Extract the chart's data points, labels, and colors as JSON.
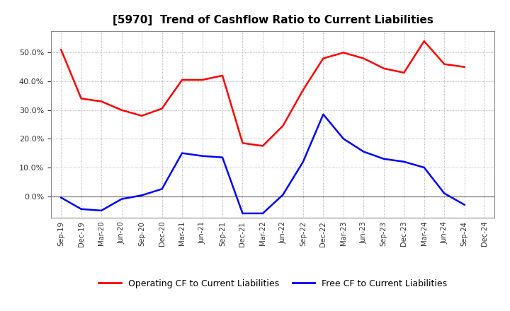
{
  "title": "[5970]  Trend of Cashflow Ratio to Current Liabilities",
  "x_labels": [
    "Sep-19",
    "Dec-19",
    "Mar-20",
    "Jun-20",
    "Sep-20",
    "Dec-20",
    "Mar-21",
    "Jun-21",
    "Sep-21",
    "Dec-21",
    "Mar-22",
    "Jun-22",
    "Sep-22",
    "Dec-22",
    "Mar-23",
    "Jun-23",
    "Sep-23",
    "Dec-23",
    "Mar-24",
    "Jun-24",
    "Sep-24",
    "Dec-24"
  ],
  "operating_cf": [
    0.51,
    0.34,
    0.33,
    0.3,
    0.28,
    0.305,
    0.405,
    0.405,
    0.42,
    0.185,
    0.175,
    0.245,
    0.37,
    0.48,
    0.5,
    0.48,
    0.445,
    0.43,
    0.54,
    0.46,
    0.45,
    null
  ],
  "free_cf": [
    -0.005,
    -0.045,
    -0.05,
    -0.01,
    0.003,
    0.025,
    0.15,
    0.14,
    0.135,
    -0.06,
    -0.06,
    0.005,
    0.12,
    0.285,
    0.2,
    0.155,
    0.13,
    0.12,
    0.1,
    0.01,
    -0.03,
    null
  ],
  "operating_color": "#FF0000",
  "free_color": "#0000FF",
  "ylim": [
    -0.075,
    0.575
  ],
  "yticks": [
    0.0,
    0.1,
    0.2,
    0.3,
    0.4,
    0.5
  ],
  "background_color": "#FFFFFF",
  "grid_color": "#999999",
  "title_fontsize": 11,
  "legend_fontsize": 9
}
